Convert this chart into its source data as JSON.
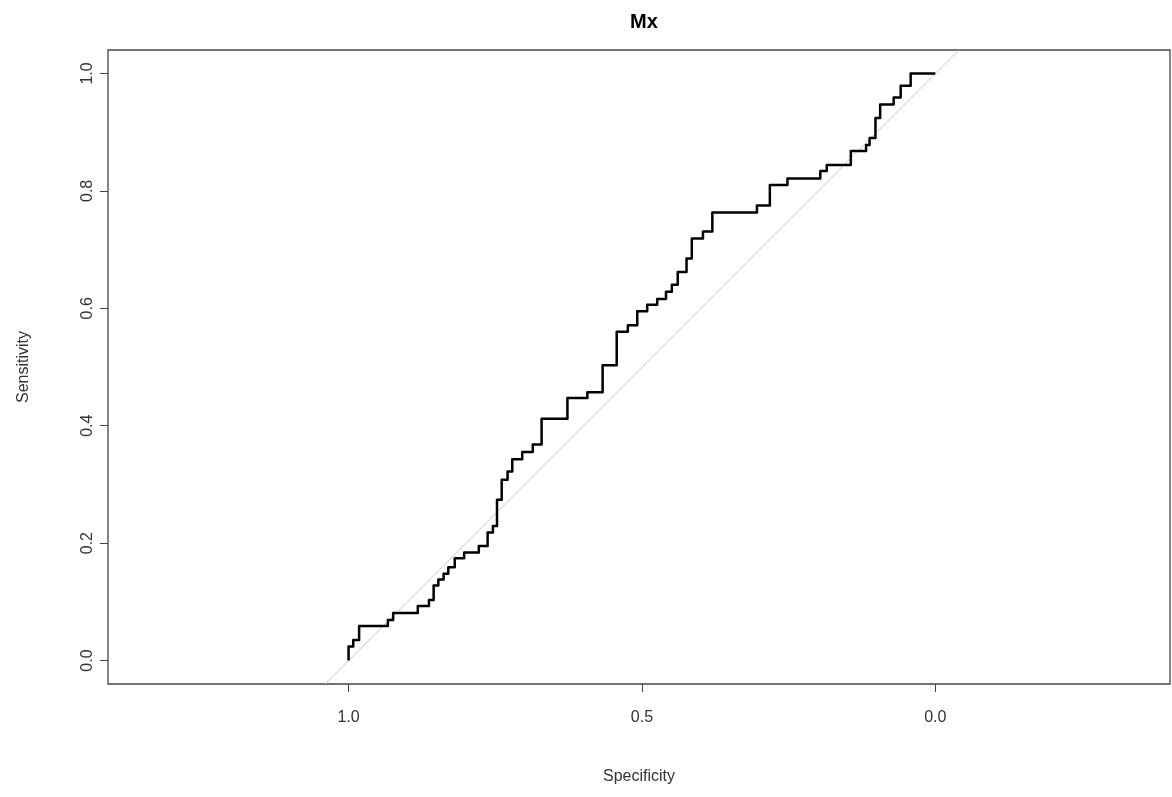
{
  "chart_data": {
    "type": "line",
    "title": "Mx",
    "xlabel": "Specificity",
    "ylabel": "Sensitivity",
    "xlim": [
      1.41,
      -0.4
    ],
    "xticks": [
      {
        "value": 1,
        "label": "1.0"
      },
      0.5,
      {
        "value": 0,
        "label": "0.0"
      }
    ],
    "ylim": [
      -0.04,
      1.04
    ],
    "yticks": [
      {
        "value": 0,
        "label": "0.0"
      },
      0.2,
      0.4,
      0.6,
      0.8,
      {
        "value": 1,
        "label": "1.0"
      }
    ],
    "grid": false,
    "marker": "none",
    "series": [
      {
        "color": "#000000",
        "line_style": "solid",
        "x": [
          1.0,
          1.0,
          0.992,
          0.992,
          0.982,
          0.982,
          0.933,
          0.933,
          0.924,
          0.924,
          0.882,
          0.882,
          0.863,
          0.863,
          0.855,
          0.855,
          0.847,
          0.847,
          0.838,
          0.838,
          0.83,
          0.83,
          0.819,
          0.819,
          0.803,
          0.803,
          0.778,
          0.778,
          0.763,
          0.763,
          0.754,
          0.754,
          0.747,
          0.747,
          0.739,
          0.739,
          0.729,
          0.729,
          0.721,
          0.721,
          0.704,
          0.704,
          0.686,
          0.686,
          0.671,
          0.671,
          0.627,
          0.627,
          0.593,
          0.593,
          0.567,
          0.567,
          0.543,
          0.543,
          0.524,
          0.524,
          0.508,
          0.508,
          0.491,
          0.491,
          0.474,
          0.474,
          0.459,
          0.459,
          0.449,
          0.449,
          0.439,
          0.439,
          0.424,
          0.424,
          0.415,
          0.415,
          0.396,
          0.396,
          0.38,
          0.38,
          0.304,
          0.304,
          0.282,
          0.282,
          0.252,
          0.252,
          0.196,
          0.196,
          0.185,
          0.185,
          0.144,
          0.144,
          0.118,
          0.118,
          0.112,
          0.112,
          0.102,
          0.102,
          0.094,
          0.094,
          0.071,
          0.071,
          0.059,
          0.059,
          0.042,
          0.042,
          0.0
        ],
        "values": [
          0.0,
          0.024,
          0.024,
          0.035,
          0.035,
          0.059,
          0.059,
          0.069,
          0.069,
          0.081,
          0.081,
          0.093,
          0.093,
          0.103,
          0.103,
          0.128,
          0.128,
          0.138,
          0.138,
          0.148,
          0.148,
          0.159,
          0.159,
          0.174,
          0.174,
          0.184,
          0.184,
          0.195,
          0.195,
          0.218,
          0.218,
          0.229,
          0.229,
          0.274,
          0.274,
          0.308,
          0.308,
          0.322,
          0.322,
          0.343,
          0.343,
          0.355,
          0.355,
          0.368,
          0.368,
          0.412,
          0.412,
          0.447,
          0.447,
          0.457,
          0.457,
          0.503,
          0.503,
          0.56,
          0.56,
          0.571,
          0.571,
          0.595,
          0.595,
          0.606,
          0.606,
          0.616,
          0.616,
          0.628,
          0.628,
          0.64,
          0.64,
          0.662,
          0.662,
          0.685,
          0.685,
          0.719,
          0.719,
          0.731,
          0.731,
          0.763,
          0.763,
          0.775,
          0.775,
          0.81,
          0.81,
          0.821,
          0.821,
          0.834,
          0.834,
          0.844,
          0.844,
          0.868,
          0.868,
          0.878,
          0.878,
          0.89,
          0.89,
          0.924,
          0.924,
          0.947,
          0.947,
          0.959,
          0.959,
          0.979,
          0.979,
          1.0,
          1.0
        ]
      },
      {
        "color": "#c8c8c8",
        "line_style": "solid",
        "x": [
          1.04,
          -0.04
        ],
        "values": [
          -0.04,
          1.04
        ]
      }
    ]
  }
}
